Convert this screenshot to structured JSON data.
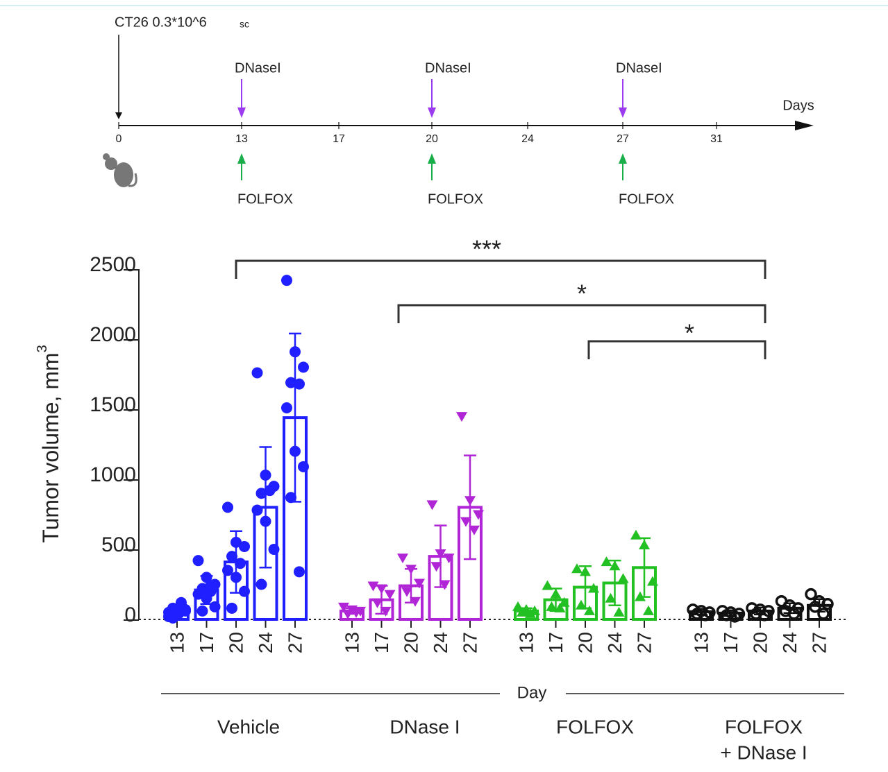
{
  "timeline": {
    "injection": "CT26 0.3*10^6",
    "route": "sc",
    "axis_label": "Days",
    "days": [
      "0",
      "13",
      "17",
      "20",
      "24",
      "27",
      "31"
    ],
    "top_label": "DNaseI",
    "bottom_label": "FOLFOX"
  },
  "chart_data": {
    "type": "bar",
    "ylabel": "Tumor volume, mm",
    "ylabel_sup": "3",
    "xlabel": "Day",
    "categories": [
      "13",
      "17",
      "20",
      "24",
      "27"
    ],
    "ylim": [
      0,
      2500
    ],
    "yticks": [
      0,
      500,
      1000,
      1500,
      2000,
      2500
    ],
    "significance": [
      "***",
      "*",
      "*"
    ],
    "groups": [
      {
        "name": [
          "Vehicle"
        ],
        "color": "#1f1fff",
        "marker": "circle",
        "values": [
          50,
          210,
          410,
          800,
          1440
        ],
        "errors": [
          30,
          100,
          220,
          430,
          600
        ],
        "points": [
          [
            20,
            40,
            60,
            80,
            120,
            50,
            30,
            70,
            10,
            90
          ],
          [
            420,
            300,
            250,
            220,
            200,
            180,
            150,
            90,
            60,
            240
          ],
          [
            800,
            550,
            520,
            450,
            400,
            350,
            300,
            200,
            80
          ],
          [
            1760,
            1030,
            950,
            900,
            920,
            780,
            700,
            500,
            250
          ],
          [
            2420,
            1910,
            1800,
            1690,
            1680,
            1510,
            1200,
            1090,
            870,
            340
          ]
        ]
      },
      {
        "name": [
          "DNase I"
        ],
        "color": "#b026d6",
        "marker": "triangle-down",
        "values": [
          60,
          140,
          240,
          450,
          800
        ],
        "errors": [
          20,
          100,
          120,
          220,
          370
        ],
        "points": [
          [
            90,
            70,
            60,
            40,
            50
          ],
          [
            240,
            220,
            180,
            120,
            60
          ],
          [
            440,
            360,
            260,
            200,
            130
          ],
          [
            820,
            470,
            440,
            380,
            250
          ],
          [
            1450,
            850,
            750,
            700,
            640
          ]
        ]
      },
      {
        "name": [
          "FOLFOX"
        ],
        "color": "#22c022",
        "marker": "triangle-up",
        "values": [
          60,
          140,
          230,
          260,
          370
        ],
        "errors": [
          20,
          80,
          150,
          160,
          210
        ],
        "points": [
          [
            90,
            70,
            60,
            50,
            40
          ],
          [
            240,
            180,
            120,
            90,
            80
          ],
          [
            360,
            340,
            220,
            100,
            60
          ],
          [
            410,
            380,
            290,
            150,
            50
          ],
          [
            600,
            530,
            270,
            160,
            60
          ]
        ]
      },
      {
        "name": [
          "FOLFOX",
          "+ DNase I"
        ],
        "color": "#111111",
        "marker": "open-circle",
        "values": [
          55,
          45,
          60,
          80,
          100
        ],
        "errors": [
          20,
          20,
          25,
          35,
          45
        ],
        "points": [
          [
            70,
            60,
            50,
            40,
            30
          ],
          [
            60,
            50,
            40,
            30,
            20
          ],
          [
            80,
            70,
            60,
            40,
            30
          ],
          [
            130,
            100,
            80,
            60,
            40
          ],
          [
            180,
            130,
            110,
            90,
            40
          ]
        ]
      }
    ]
  }
}
